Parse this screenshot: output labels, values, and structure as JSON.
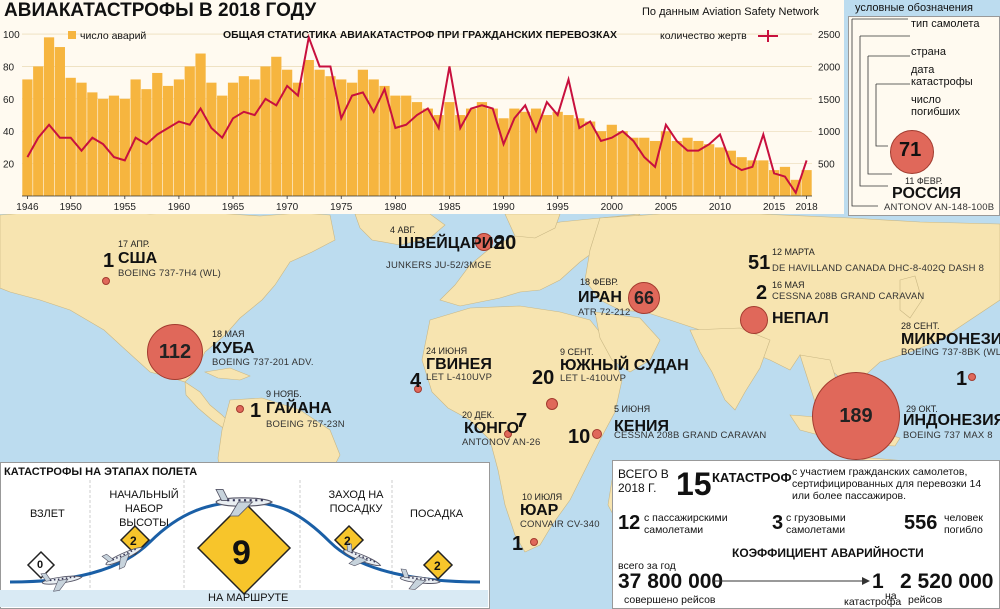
{
  "header": {
    "title": "АВИАКАТАСТРОФЫ В 2018 ГОДУ",
    "source": "По данным Aviation Safety Network",
    "legend_title": "условные обозначения"
  },
  "legend": {
    "items": [
      "тип самолета",
      "страна",
      "дата катастрофы",
      "число погибших"
    ],
    "example": {
      "deaths": "71",
      "date": "11 ФЕВР.",
      "country": "РОССИЯ",
      "aircraft": "ANTONOV AN-148-100B"
    }
  },
  "chart_data": {
    "type": "bar+line",
    "title": "ОБЩАЯ СТАТИСТИКА АВИАКАТАСТРОФ ПРИ ГРАЖДАНСКИХ ПЕРЕВОЗКАХ",
    "x": [
      1946,
      1947,
      1948,
      1949,
      1950,
      1951,
      1952,
      1953,
      1954,
      1955,
      1956,
      1957,
      1958,
      1959,
      1960,
      1961,
      1962,
      1963,
      1964,
      1965,
      1966,
      1967,
      1968,
      1969,
      1970,
      1971,
      1972,
      1973,
      1974,
      1975,
      1976,
      1977,
      1978,
      1979,
      1980,
      1981,
      1982,
      1983,
      1984,
      1985,
      1986,
      1987,
      1988,
      1989,
      1990,
      1991,
      1992,
      1993,
      1994,
      1995,
      1996,
      1997,
      1998,
      1999,
      2000,
      2001,
      2002,
      2003,
      2004,
      2005,
      2006,
      2007,
      2008,
      2009,
      2010,
      2011,
      2012,
      2013,
      2014,
      2015,
      2016,
      2017,
      2018
    ],
    "x_ticks": [
      1946,
      1950,
      1955,
      1960,
      1965,
      1970,
      1975,
      1980,
      1985,
      1990,
      1995,
      2000,
      2005,
      2010,
      2015,
      2018
    ],
    "series": [
      {
        "name": "число аварий",
        "type": "bar",
        "axis": "left",
        "color": "#f6b53f",
        "values": [
          72,
          80,
          98,
          92,
          73,
          70,
          64,
          60,
          62,
          60,
          72,
          66,
          76,
          68,
          72,
          80,
          88,
          70,
          62,
          70,
          74,
          72,
          80,
          86,
          78,
          70,
          84,
          78,
          74,
          72,
          70,
          78,
          72,
          68,
          62,
          62,
          58,
          54,
          50,
          58,
          50,
          54,
          58,
          54,
          48,
          54,
          52,
          54,
          50,
          52,
          50,
          48,
          46,
          40,
          44,
          40,
          36,
          36,
          34,
          40,
          34,
          36,
          34,
          32,
          30,
          28,
          24,
          22,
          22,
          16,
          18,
          10,
          16
        ]
      },
      {
        "name": "количество жертв",
        "type": "line",
        "axis": "right",
        "color": "#c8103e",
        "values": [
          600,
          900,
          1100,
          900,
          900,
          700,
          900,
          800,
          600,
          550,
          900,
          800,
          950,
          1050,
          1150,
          1100,
          1350,
          1050,
          900,
          1200,
          1300,
          1250,
          1500,
          1400,
          1700,
          1550,
          2450,
          2000,
          2000,
          1200,
          1550,
          1600,
          1300,
          1650,
          1050,
          1100,
          1250,
          1350,
          1050,
          2000,
          1050,
          1350,
          1400,
          1350,
          800,
          1200,
          1400,
          1000,
          1450,
          1250,
          1800,
          1050,
          1150,
          850,
          900,
          1000,
          850,
          600,
          450,
          1100,
          850,
          700,
          700,
          800,
          950,
          500,
          400,
          450,
          950,
          350,
          300,
          50,
          550
        ]
      }
    ],
    "left_axis": {
      "ticks": [
        20,
        40,
        60,
        80,
        100
      ],
      "ylim": [
        0,
        105
      ]
    },
    "right_axis": {
      "ticks": [
        500,
        1000,
        1500,
        2000,
        2500
      ],
      "ylim": [
        0,
        2625
      ]
    }
  },
  "crashes": [
    {
      "id": "usa",
      "deaths": "1",
      "country": "США",
      "date": "17 АПР.",
      "aircraft": "BOEING 737-7H4 (WL)"
    },
    {
      "id": "switzerland",
      "deaths": "20",
      "country": "ШВЕЙЦАРИЯ",
      "date": "4 АВГ.",
      "aircraft": "JUNKERS JU-52/3MGE"
    },
    {
      "id": "nepal",
      "deaths": "51",
      "country": "НЕПАЛ",
      "date": "12 МАРТА",
      "aircraft": "DE HAVILLAND CANADA DHC-8-402Q DASH 8"
    },
    {
      "id": "nepal2",
      "deaths": "2",
      "date": "16 МАЯ",
      "aircraft": "CESSNA 208B GRAND CARAVAN"
    },
    {
      "id": "iran",
      "deaths": "66",
      "country": "ИРАН",
      "date": "18 ФЕВР.",
      "aircraft": "ATR 72-212"
    },
    {
      "id": "cuba",
      "deaths": "112",
      "country": "КУБА",
      "date": "18 МАЯ",
      "aircraft": "BOEING 737-201 ADV."
    },
    {
      "id": "guinea",
      "deaths": "4",
      "country": "ГВИНЕЯ",
      "date": "24 ИЮНЯ",
      "aircraft": "LET L-410UVP"
    },
    {
      "id": "south-sudan",
      "deaths": "20",
      "country": "ЮЖНЫЙ СУДАН",
      "date": "9 СЕНТ.",
      "aircraft": "LET L-410UVP"
    },
    {
      "id": "micronesia",
      "deaths": "1",
      "country": "МИКРОНЕЗИЯ",
      "date": "28 СЕНТ.",
      "aircraft": "BOEING 737-8BK (WL)"
    },
    {
      "id": "guyana",
      "deaths": "1",
      "country": "ГАЙАНА",
      "date": "9 НОЯБ.",
      "aircraft": "BOEING 757-23N"
    },
    {
      "id": "congo",
      "deaths": "7",
      "country": "КОНГО",
      "date": "20 ДЕК.",
      "aircraft": "ANTONOV AN-26"
    },
    {
      "id": "kenya",
      "deaths": "10",
      "country": "КЕНИЯ",
      "date": "5 ИЮНЯ",
      "aircraft": "CESSNA 208B GRAND CARAVAN"
    },
    {
      "id": "indonesia",
      "deaths": "189",
      "country": "ИНДОНЕЗИЯ",
      "date": "29 ОКТ.",
      "aircraft": "BOEING 737 MAX 8"
    },
    {
      "id": "sar",
      "deaths": "1",
      "country": "ЮАР",
      "date": "10 ИЮЛЯ",
      "aircraft": "CONVAIR CV-340"
    }
  ],
  "phases": {
    "title": "КАТАСТРОФЫ НА ЭТАПАХ ПОЛЕТА",
    "items": [
      {
        "label": "ВЗЛЕТ",
        "count": "0"
      },
      {
        "label": "НАЧАЛЬНЫЙ НАБОР ВЫСОТЫ",
        "count": "2"
      },
      {
        "label": "НА МАРШРУТЕ",
        "count": "9"
      },
      {
        "label": "ЗАХОД НА ПОСАДКУ",
        "count": "2"
      },
      {
        "label": "ПОСАДКА",
        "count": "2"
      }
    ]
  },
  "summary": {
    "total_prefix": "ВСЕГО В 2018 Г.",
    "total": "15",
    "total_word": "КАТАСТРОФ",
    "total_desc": "с участием гражданских самолетов, сертифицированных для перевозки 14 или более пассажиров.",
    "passenger": "12",
    "passenger_label": "с пассажирскими самолетами",
    "cargo": "3",
    "cargo_label": "с грузовыми самолетами",
    "killed": "556",
    "killed_label": "человек погибло",
    "coef_title": "КОЭФФИЦИЕНТ АВАРИЙНОСТИ",
    "flights_prefix": "всего за год",
    "flights": "37 800 000",
    "flights_label": "совершено рейсов",
    "one": "1",
    "one_label": "катастрофа",
    "per": "на",
    "per_flights": "2 520 000",
    "per_label": "рейсов"
  }
}
